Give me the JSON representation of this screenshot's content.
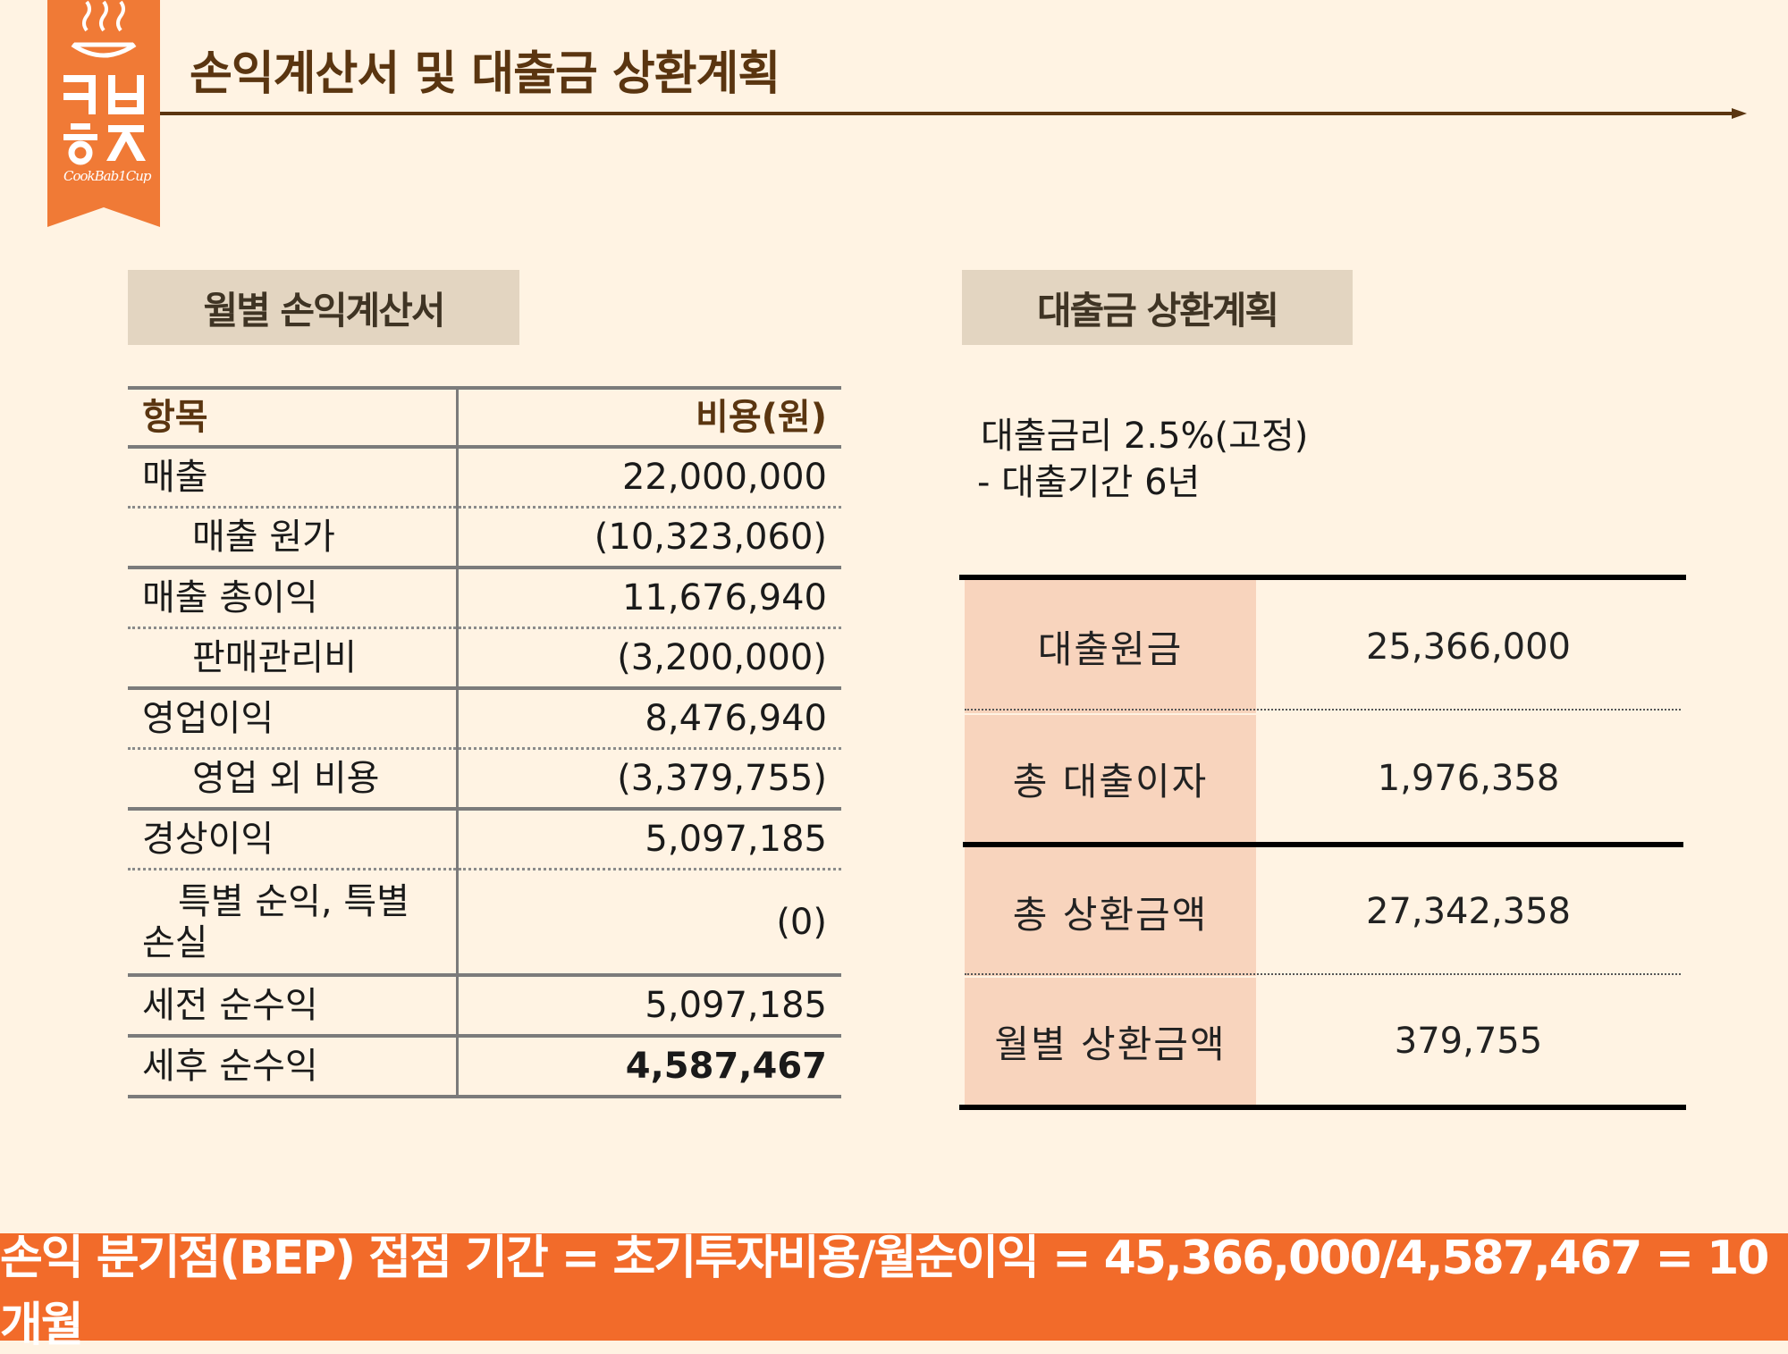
{
  "logo": {
    "icon": "steaming-pot-icon",
    "line1": "ㅋㅂ",
    "line2": "ㅎㅈ",
    "script": "CookBab1Cup",
    "color": "#f07a36"
  },
  "header": {
    "title": "손익계산서 및 대출금 상환계획"
  },
  "income_statement": {
    "tag": "월별 손익계산서",
    "col_item": "항목",
    "col_cost": "비용(원)",
    "rows": [
      {
        "label": "매출",
        "value": "22,000,000"
      },
      {
        "label": "매출 원가",
        "value": "(10,323,060)"
      },
      {
        "label": "매출 총이익",
        "value": "11,676,940"
      },
      {
        "label": "판매관리비",
        "value": "(3,200,000)"
      },
      {
        "label": "영업이익",
        "value": "8,476,940"
      },
      {
        "label": "영업 외 비용",
        "value": "(3,379,755)"
      },
      {
        "label": "경상이익",
        "value": "5,097,185"
      },
      {
        "label": "특별 순익, 특별 손실",
        "value": "(0)"
      },
      {
        "label": "세전 순수익",
        "value": "5,097,185"
      },
      {
        "label": "세후 순수익",
        "value": "4,587,467"
      }
    ]
  },
  "loan_plan": {
    "tag": "대출금 상환계획",
    "info_line1": "대출금리 2.5%(고정)",
    "info_line2": "- 대출기간 6년",
    "rows": [
      {
        "label": "대출원금",
        "value": "25,366,000"
      },
      {
        "label": "총 대출이자",
        "value": "1,976,358"
      },
      {
        "label": "총 상환금액",
        "value": "27,342,358"
      },
      {
        "label": "월별 상환금액",
        "value": "379,755"
      }
    ],
    "key_bg": "#f8d4bd"
  },
  "footer": {
    "bep_text": "손익 분기점(BEP) 접점 기간 = 초기투자비용/월순이익 = 45,366,000/4,587,467 = 10 개월",
    "bar_color": "#f26b2a"
  }
}
